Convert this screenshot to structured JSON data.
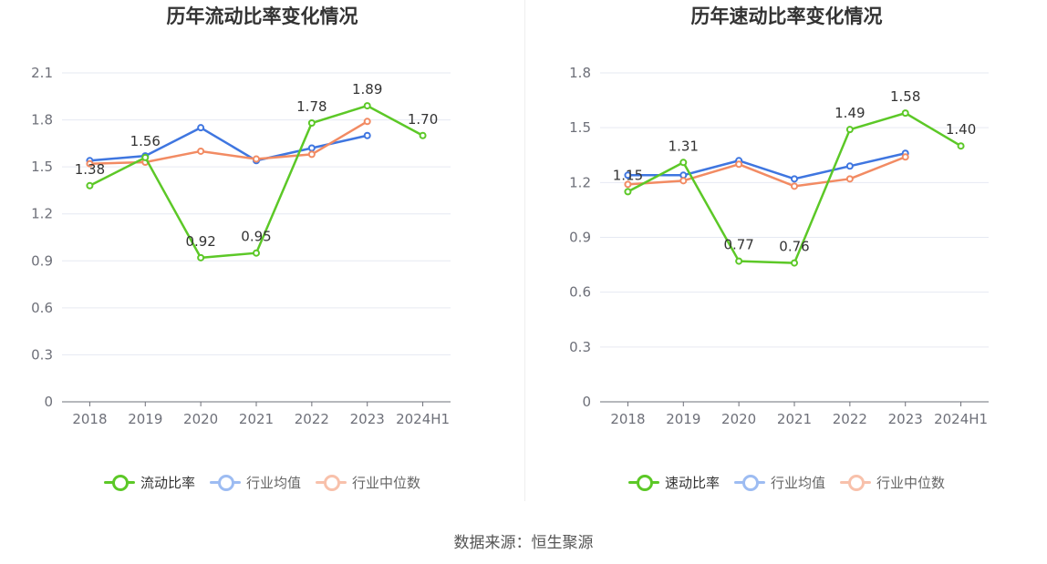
{
  "chart_data": [
    {
      "type": "line",
      "title": "历年流动比率变化情况",
      "categories": [
        "2018",
        "2019",
        "2020",
        "2021",
        "2022",
        "2023",
        "2024H1"
      ],
      "ylim": [
        0,
        2.1
      ],
      "yticks": [
        "0",
        "0.3",
        "0.6",
        "0.9",
        "1.2",
        "1.5",
        "1.8",
        "2.1"
      ],
      "series": [
        {
          "name": "流动比率",
          "color": "#5cc827",
          "values": [
            1.38,
            1.56,
            0.92,
            0.95,
            1.78,
            1.89,
            1.7
          ],
          "labels": [
            "1.38",
            "1.56",
            "0.92",
            "0.95",
            "1.78",
            "1.89",
            "1.70"
          ]
        },
        {
          "name": "行业均值",
          "color": "#3f76e0",
          "values": [
            1.54,
            1.57,
            1.75,
            1.54,
            1.62,
            1.7,
            null
          ]
        },
        {
          "name": "行业中位数",
          "color": "#f28b63",
          "values": [
            1.52,
            1.53,
            1.6,
            1.55,
            1.58,
            1.79,
            null
          ]
        }
      ]
    },
    {
      "type": "line",
      "title": "历年速动比率变化情况",
      "categories": [
        "2018",
        "2019",
        "2020",
        "2021",
        "2022",
        "2023",
        "2024H1"
      ],
      "ylim": [
        0,
        1.8
      ],
      "yticks": [
        "0",
        "0.3",
        "0.6",
        "0.9",
        "1.2",
        "1.5",
        "1.8"
      ],
      "series": [
        {
          "name": "速动比率",
          "color": "#5cc827",
          "values": [
            1.15,
            1.31,
            0.77,
            0.76,
            1.49,
            1.58,
            1.4
          ],
          "labels": [
            "1.15",
            "1.31",
            "0.77",
            "0.76",
            "1.49",
            "1.58",
            "1.40"
          ]
        },
        {
          "name": "行业均值",
          "color": "#3f76e0",
          "values": [
            1.24,
            1.24,
            1.32,
            1.22,
            1.29,
            1.36,
            null
          ]
        },
        {
          "name": "行业中位数",
          "color": "#f28b63",
          "values": [
            1.19,
            1.21,
            1.3,
            1.18,
            1.22,
            1.34,
            null
          ]
        }
      ]
    }
  ],
  "source": "数据来源：恒生聚源"
}
